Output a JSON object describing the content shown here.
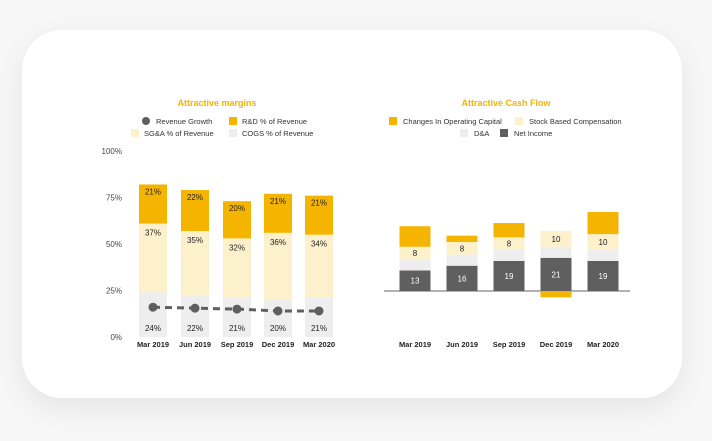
{
  "colors": {
    "gold": "#f5b400",
    "light_yellow": "#fdf1cc",
    "light_gray": "#eeeeee",
    "dark_gray": "#5f5f5f",
    "accent_title": "#f5b400"
  },
  "chart_data": [
    {
      "type": "bar",
      "stacked": true,
      "title": "Attractive margins",
      "categories": [
        "Mar 2019",
        "Jun 2019",
        "Sep 2019",
        "Dec 2019",
        "Mar 2020"
      ],
      "ylim": [
        0,
        100
      ],
      "yticks": [
        "0%",
        "25%",
        "50%",
        "75%",
        "100%"
      ],
      "series": [
        {
          "name": "COGS % of Revenue",
          "values": [
            24,
            22,
            21,
            20,
            21
          ],
          "labels": [
            "24%",
            "22%",
            "21%",
            "20%",
            "21%"
          ]
        },
        {
          "name": "SG&A % of Revenue",
          "values": [
            37,
            35,
            32,
            36,
            34
          ],
          "labels": [
            "37%",
            "35%",
            "32%",
            "36%",
            "34%"
          ]
        },
        {
          "name": "R&D % of Revenue",
          "values": [
            21,
            22,
            20,
            21,
            21
          ],
          "labels": [
            "21%",
            "22%",
            "20%",
            "21%",
            "21%"
          ]
        }
      ],
      "line_series": {
        "name": "Revenue Growth",
        "values": [
          16,
          15.5,
          15,
          14,
          14
        ],
        "style": "dashed"
      },
      "legend": [
        "Revenue Growth",
        "R&D % of Revenue",
        "SG&A % of Revenue",
        "COGS % of Revenue"
      ]
    },
    {
      "type": "bar",
      "stacked": true,
      "title": "Attractive Cash Flow",
      "categories": [
        "Mar 2019",
        "Jun 2019",
        "Sep 2019",
        "Dec 2019",
        "Mar 2020"
      ],
      "series": [
        {
          "name": "Net Income",
          "values": [
            13,
            16,
            19,
            21,
            19
          ],
          "labels": [
            "13",
            "16",
            "19",
            "21",
            "19"
          ]
        },
        {
          "name": "D&A",
          "values": [
            7,
            7,
            7,
            7,
            7
          ]
        },
        {
          "name": "Stock Based Compensation",
          "values": [
            8,
            8,
            8,
            10,
            10
          ],
          "labels": [
            "8",
            "8",
            "8",
            "10",
            "10"
          ]
        },
        {
          "name": "Changes In Operating Capital",
          "values": [
            13,
            4,
            9,
            -4,
            14
          ]
        }
      ],
      "legend": [
        "Changes In Operating Capital",
        "Stock Based Compensation",
        "D&A",
        "Net Income"
      ]
    }
  ]
}
